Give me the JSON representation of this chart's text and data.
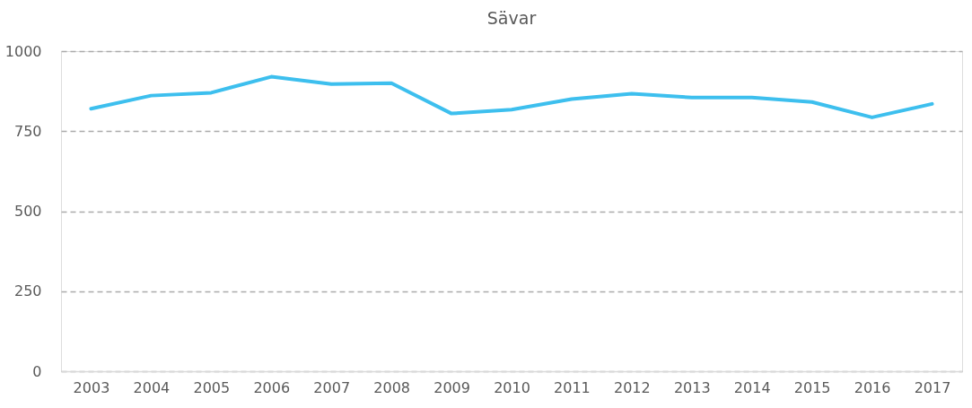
{
  "chart_data": {
    "type": "line",
    "title": "Sävar",
    "categories": [
      "2003",
      "2004",
      "2005",
      "2006",
      "2007",
      "2008",
      "2009",
      "2010",
      "2011",
      "2012",
      "2013",
      "2014",
      "2015",
      "2016",
      "2017"
    ],
    "series": [
      {
        "color": "#3dbfee",
        "values": [
          820,
          861,
          870,
          920,
          897,
          900,
          805,
          817,
          850,
          867,
          855,
          855,
          841,
          793,
          835
        ]
      }
    ],
    "ylim": [
      0,
      1000
    ],
    "yticks": [
      0,
      250,
      500,
      750,
      1000
    ],
    "grid": "y",
    "legend": false,
    "marker": "none",
    "line_style": "solid"
  }
}
